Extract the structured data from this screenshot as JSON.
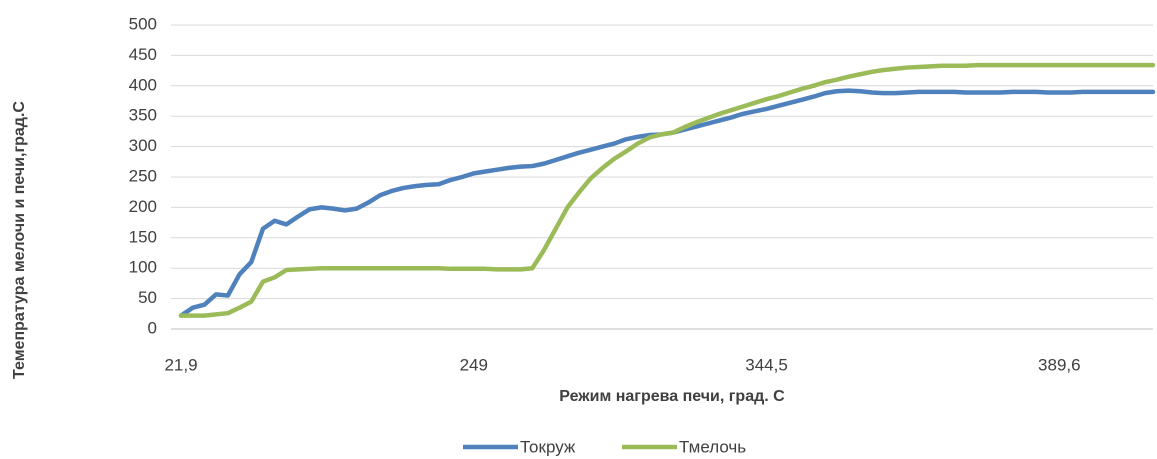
{
  "chart_data": {
    "type": "line",
    "x_label": "Режим нагрева печи, град. С",
    "y_label": "Темепратура мелочи и печи,град.С",
    "categories": [
      "21,9",
      null,
      null,
      null,
      null,
      null,
      null,
      null,
      null,
      null,
      null,
      null,
      null,
      null,
      null,
      null,
      null,
      null,
      null,
      null,
      null,
      null,
      null,
      null,
      null,
      "249",
      null,
      null,
      null,
      null,
      null,
      null,
      null,
      null,
      null,
      null,
      null,
      null,
      null,
      null,
      null,
      null,
      null,
      null,
      null,
      null,
      null,
      null,
      null,
      null,
      "344,5",
      null,
      null,
      null,
      null,
      null,
      null,
      null,
      null,
      null,
      null,
      null,
      null,
      null,
      null,
      null,
      null,
      null,
      null,
      null,
      null,
      null,
      null,
      null,
      null,
      "389,6",
      null,
      null,
      null,
      null,
      null,
      null,
      null,
      null
    ],
    "series": [
      {
        "name": "Токруж",
        "color": "#4f81bd",
        "values": [
          22,
          35,
          40,
          57,
          55,
          90,
          110,
          165,
          178,
          172,
          185,
          197,
          200,
          198,
          195,
          198,
          208,
          220,
          227,
          232,
          235,
          237,
          238,
          245,
          250,
          256,
          259,
          262,
          265,
          267,
          268,
          272,
          278,
          284,
          290,
          295,
          300,
          305,
          312,
          316,
          319,
          320,
          323,
          328,
          333,
          338,
          343,
          348,
          354,
          358,
          362,
          367,
          372,
          377,
          382,
          388,
          391,
          392,
          391,
          389,
          388,
          388,
          389,
          390,
          390,
          390,
          390,
          389,
          389,
          389,
          389,
          390,
          390,
          390,
          389,
          389,
          389,
          390,
          390,
          390,
          390,
          390,
          390,
          390
        ]
      },
      {
        "name": "Тмелочь",
        "color": "#9bbb59",
        "values": [
          22,
          22,
          22,
          24,
          26,
          35,
          45,
          78,
          85,
          97,
          98,
          99,
          100,
          100,
          100,
          100,
          100,
          100,
          100,
          100,
          100,
          100,
          100,
          99,
          99,
          99,
          99,
          98,
          98,
          98,
          100,
          130,
          165,
          200,
          225,
          248,
          265,
          280,
          292,
          305,
          315,
          320,
          323,
          332,
          340,
          347,
          354,
          360,
          366,
          372,
          378,
          383,
          389,
          395,
          400,
          406,
          410,
          415,
          419,
          423,
          426,
          428,
          430,
          431,
          432,
          433,
          433,
          433,
          434,
          434,
          434,
          434,
          434,
          434,
          434,
          434,
          434,
          434,
          434,
          434,
          434,
          434,
          434,
          434
        ]
      }
    ],
    "ylim": [
      0,
      500
    ],
    "yticks": [
      0,
      50,
      100,
      150,
      200,
      250,
      300,
      350,
      400,
      450,
      500
    ],
    "grid": true,
    "legend": "bottom"
  }
}
